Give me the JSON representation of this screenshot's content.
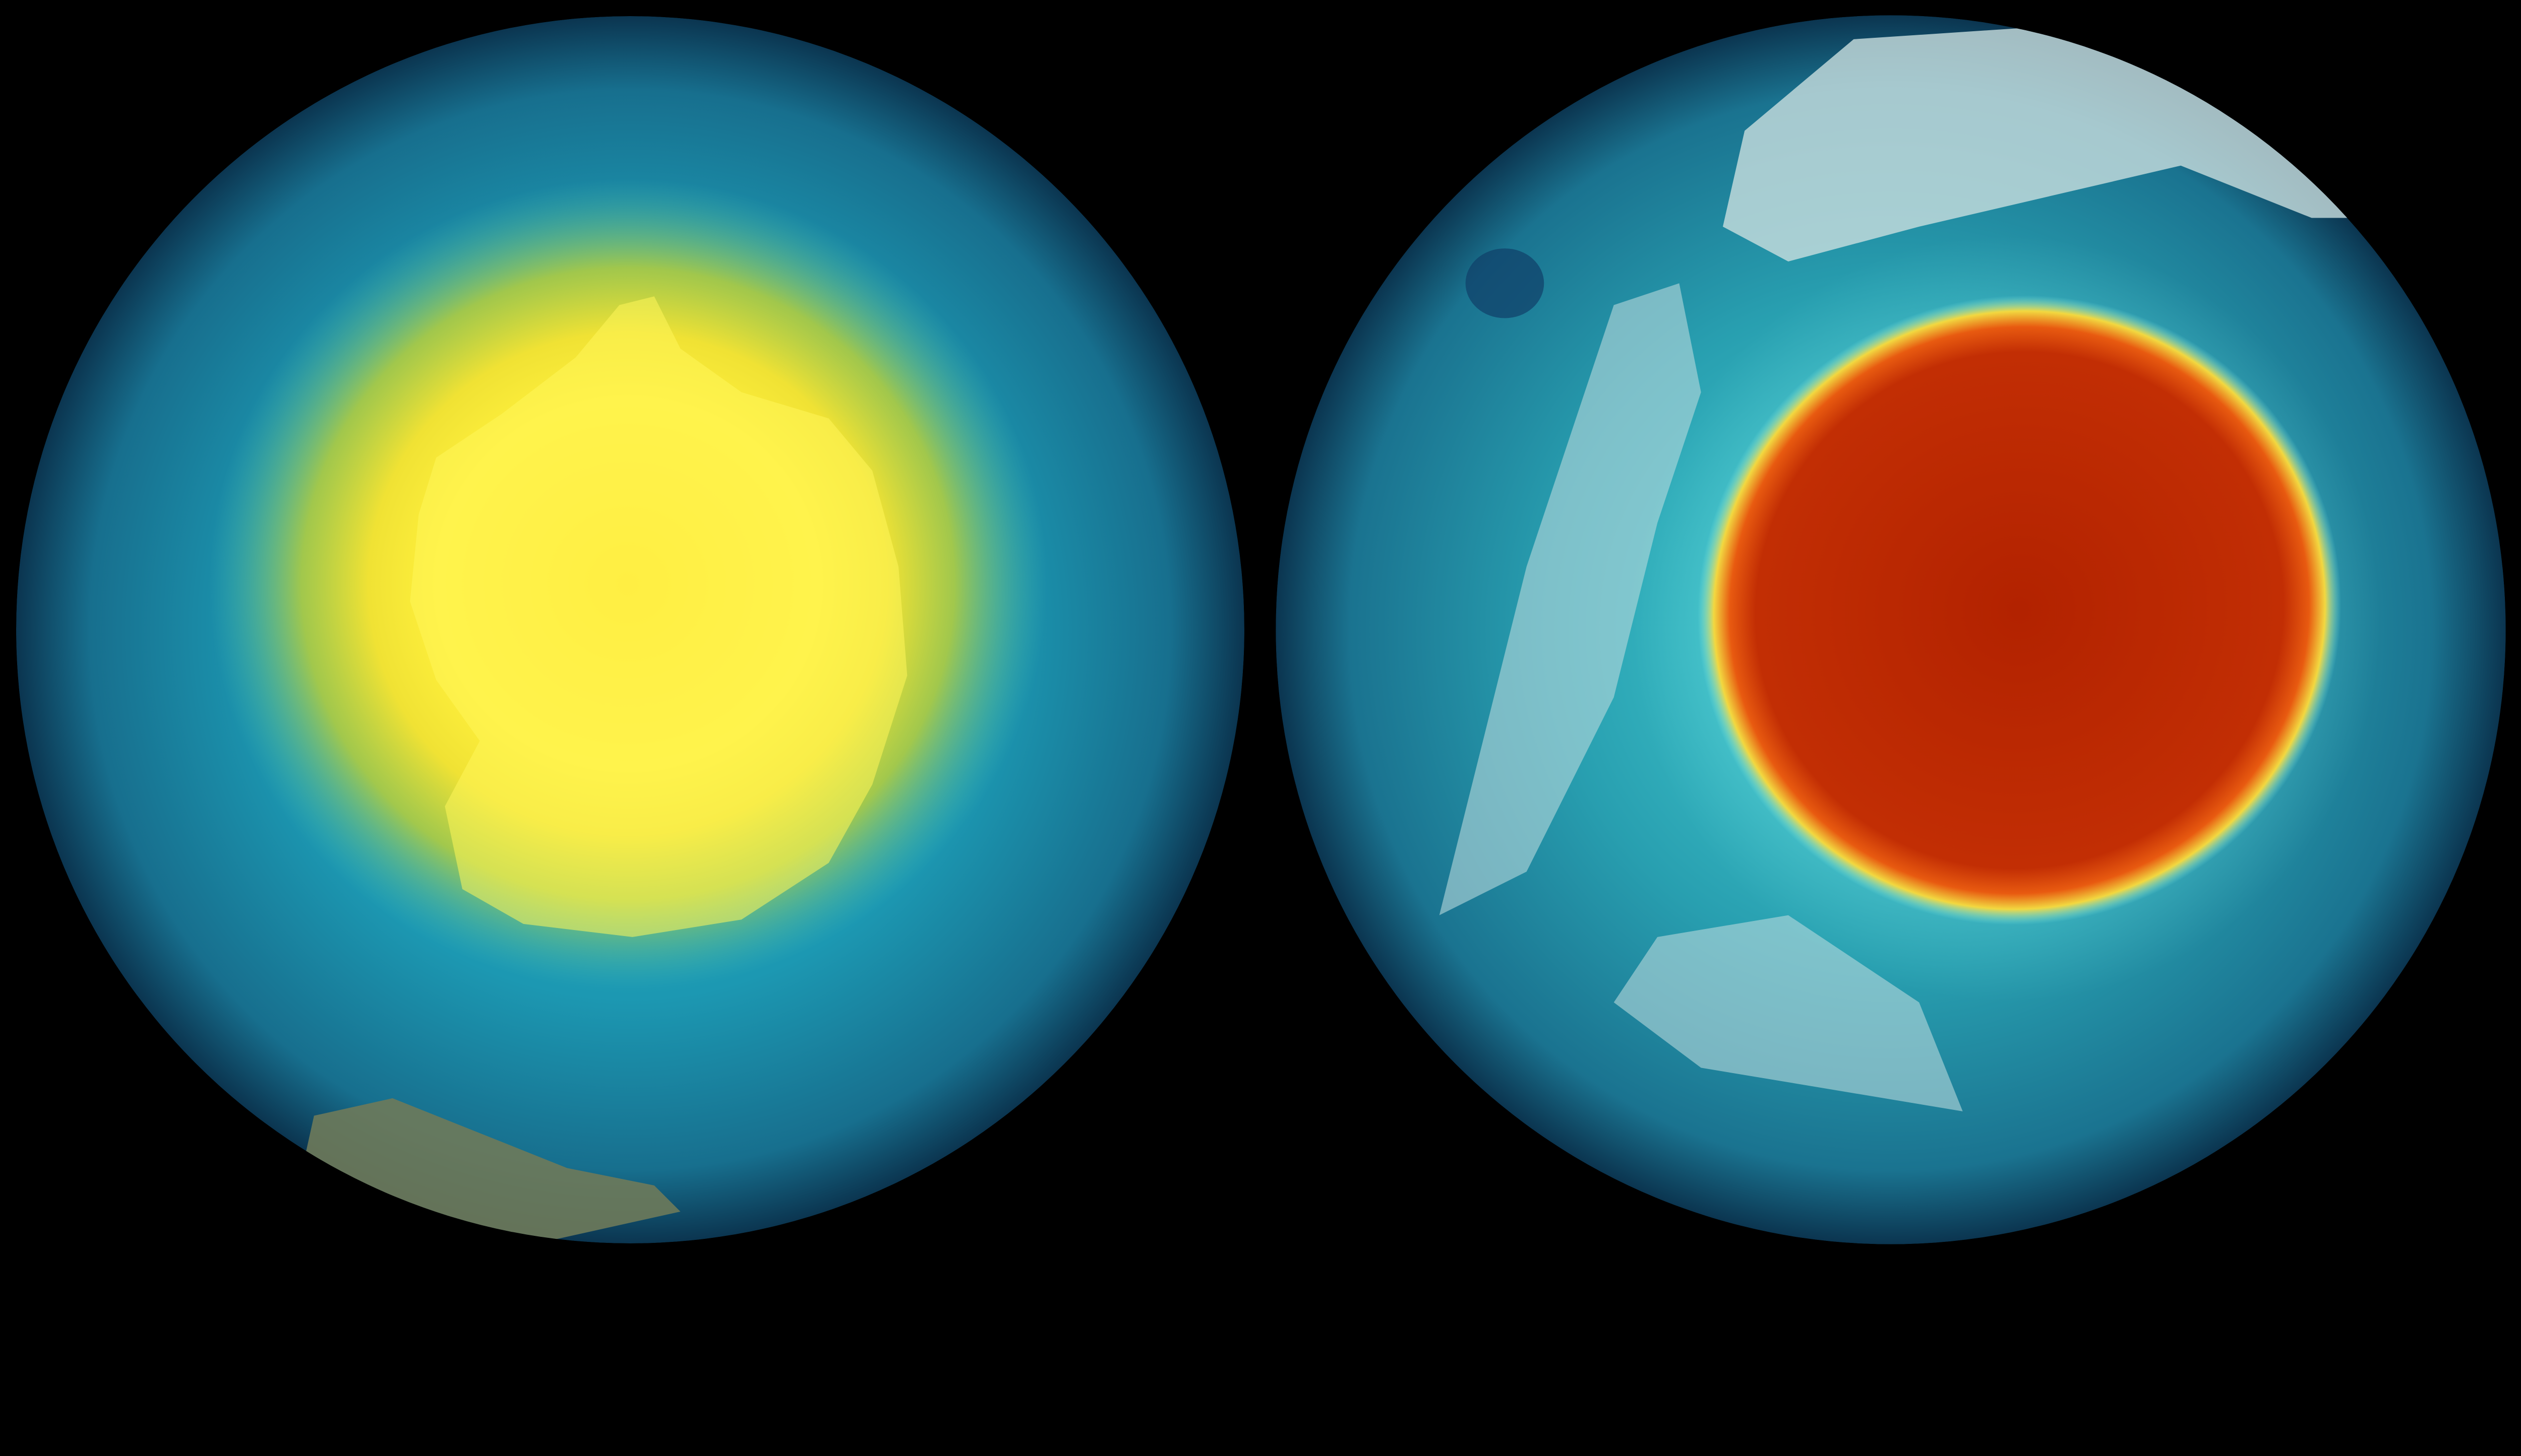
{
  "scene": {
    "background_color": "#000000",
    "globes": [
      {
        "id": "left-globe",
        "ocean_color": "#1a8fa8",
        "edge_color": "#0b3a52",
        "highlight_colors": [
          "#fff23a",
          "#f5d020",
          "#d9d22a"
        ]
      },
      {
        "id": "right-globe",
        "ocean_color": "#2a9aa8",
        "edge_color": "#0b3a52",
        "land_color": "#b8d8dc",
        "highlight_colors": [
          "#b82400",
          "#e04a10",
          "#f0e040",
          "#7ff0f0"
        ]
      }
    ]
  }
}
